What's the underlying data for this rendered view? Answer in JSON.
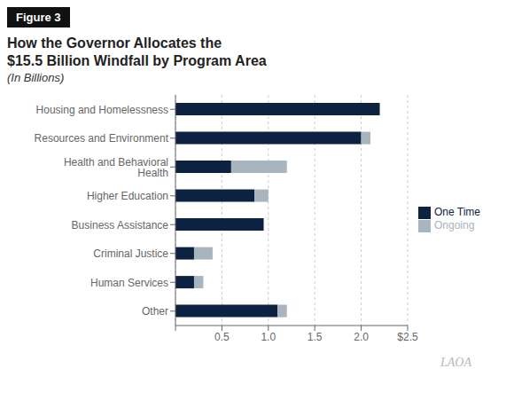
{
  "chart_data": {
    "type": "bar",
    "title": "How the Governor Allocates the\n$15.5 Billion Windfall by Program Area",
    "subtitle": "(In Billions)",
    "annotations": [
      "Figure 3",
      "LAOA"
    ],
    "orientation": "horizontal",
    "stacked": true,
    "categories": [
      "Housing and Homelessness",
      "Resources and Environment",
      "Health and Behavioral Health",
      "Higher Education",
      "Business Assistance",
      "Criminal Justice",
      "Human Services",
      "Other"
    ],
    "series": [
      {
        "name": "One Time",
        "color": "#0d2240",
        "values": [
          2.2,
          2.0,
          0.6,
          0.85,
          0.95,
          0.2,
          0.2,
          1.1
        ]
      },
      {
        "name": "Ongoing",
        "color": "#a8b4be",
        "values": [
          0.0,
          0.1,
          0.6,
          0.15,
          0.0,
          0.2,
          0.1,
          0.1
        ]
      }
    ],
    "xlim": [
      0,
      2.5
    ],
    "xticks": [
      {
        "value": 0,
        "label": ""
      },
      0.5,
      {
        "value": 1.0,
        "label": "1.0"
      },
      1.5,
      {
        "value": 2.0,
        "label": "2.0"
      },
      {
        "value": 2.5,
        "label": "$2.5"
      }
    ],
    "grid": true,
    "legend": "right"
  }
}
